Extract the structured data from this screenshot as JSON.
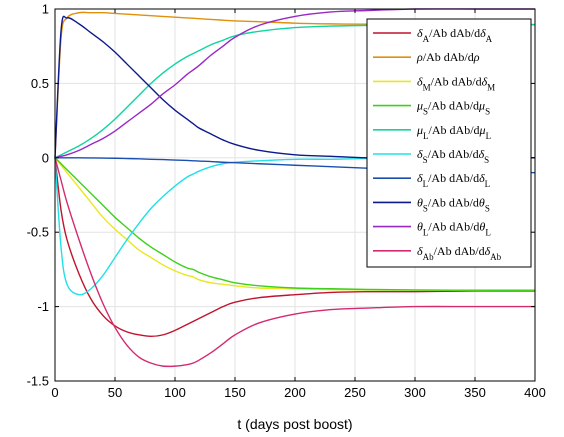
{
  "chart_data": {
    "type": "line",
    "xlabel": "t (days post boost)",
    "ylabel": "",
    "title": "",
    "xlim": [
      0,
      400
    ],
    "ylim": [
      -1.5,
      1
    ],
    "x_ticks": [
      0,
      50,
      100,
      150,
      200,
      250,
      300,
      350,
      400
    ],
    "y_ticks": [
      -1.5,
      -1,
      -0.5,
      0,
      0.5,
      1
    ],
    "x_tick_labels": [
      "0",
      "50",
      "100",
      "150",
      "200",
      "250",
      "300",
      "350",
      "400"
    ],
    "y_tick_labels": [
      "-1.5",
      "-1",
      "-0.5",
      "0",
      "0.5",
      "1"
    ],
    "grid": true,
    "legend_position": "top-right",
    "x": [
      0,
      5,
      10,
      20,
      30,
      40,
      50,
      60,
      70,
      80,
      90,
      100,
      110,
      115,
      120,
      130,
      140,
      150,
      170,
      200,
      230,
      260,
      300,
      350,
      400
    ],
    "series": [
      {
        "name_parts": [
          [
            "δ",
            "A"
          ],
          [
            "/Ab dAb/d",
            ""
          ],
          [
            "δ",
            "A"
          ]
        ],
        "color": "#c0142d",
        "values": [
          0,
          -0.35,
          -0.55,
          -0.78,
          -0.95,
          -1.06,
          -1.13,
          -1.17,
          -1.19,
          -1.2,
          -1.19,
          -1.16,
          -1.12,
          -1.1,
          -1.08,
          -1.04,
          -1.0,
          -0.97,
          -0.94,
          -0.92,
          -0.905,
          -0.9,
          -0.9,
          -0.895,
          -0.895
        ]
      },
      {
        "name_parts": [
          [
            "ρ",
            ""
          ],
          [
            "/Ab dAb/d",
            ""
          ],
          [
            "ρ",
            ""
          ]
        ],
        "color": "#e0900a",
        "values": [
          0,
          0.8,
          0.94,
          0.975,
          0.975,
          0.975,
          0.97,
          0.965,
          0.96,
          0.955,
          0.95,
          0.945,
          0.94,
          0.938,
          0.935,
          0.93,
          0.925,
          0.92,
          0.915,
          0.905,
          0.9,
          0.898,
          0.898,
          0.895,
          0.895
        ]
      },
      {
        "name_parts": [
          [
            "δ",
            "M"
          ],
          [
            "/Ab dAb/d",
            ""
          ],
          [
            "δ",
            "M"
          ]
        ],
        "color": "#e8e820",
        "values": [
          0,
          -0.05,
          -0.1,
          -0.2,
          -0.3,
          -0.4,
          -0.48,
          -0.55,
          -0.62,
          -0.67,
          -0.72,
          -0.76,
          -0.79,
          -0.8,
          -0.82,
          -0.84,
          -0.85,
          -0.86,
          -0.875,
          -0.88,
          -0.885,
          -0.888,
          -0.89,
          -0.89,
          -0.89
        ]
      },
      {
        "name_parts": [
          [
            "μ",
            "S"
          ],
          [
            "/Ab dAb/d",
            ""
          ],
          [
            "μ",
            "S"
          ]
        ],
        "color": "#3ecf1c",
        "values": [
          0,
          -0.04,
          -0.08,
          -0.16,
          -0.24,
          -0.32,
          -0.4,
          -0.47,
          -0.54,
          -0.6,
          -0.65,
          -0.7,
          -0.74,
          -0.75,
          -0.77,
          -0.8,
          -0.82,
          -0.84,
          -0.86,
          -0.875,
          -0.88,
          -0.885,
          -0.888,
          -0.89,
          -0.89
        ]
      },
      {
        "name_parts": [
          [
            "μ",
            "L"
          ],
          [
            "/Ab dAb/d",
            ""
          ],
          [
            "μ",
            "L"
          ]
        ],
        "color": "#11d4a0",
        "values": [
          0,
          0.02,
          0.04,
          0.08,
          0.13,
          0.19,
          0.26,
          0.34,
          0.42,
          0.5,
          0.57,
          0.63,
          0.68,
          0.7,
          0.72,
          0.76,
          0.79,
          0.82,
          0.85,
          0.875,
          0.885,
          0.89,
          0.893,
          0.895,
          0.895
        ]
      },
      {
        "name_parts": [
          [
            "δ",
            "S"
          ],
          [
            "/Ab dAb/d",
            ""
          ],
          [
            "δ",
            "S"
          ]
        ],
        "color": "#20e0e8",
        "values": [
          0,
          -0.6,
          -0.85,
          -0.92,
          -0.88,
          -0.79,
          -0.67,
          -0.55,
          -0.44,
          -0.34,
          -0.26,
          -0.19,
          -0.13,
          -0.11,
          -0.09,
          -0.06,
          -0.04,
          -0.03,
          -0.02,
          -0.01,
          -0.01,
          -0.005,
          -0.005,
          0,
          0
        ]
      },
      {
        "name_parts": [
          [
            "δ",
            "L"
          ],
          [
            "/Ab dAb/d",
            ""
          ],
          [
            "δ",
            "L"
          ]
        ],
        "color": "#1a4fb0",
        "values": [
          0,
          0,
          0,
          0,
          -0.001,
          -0.002,
          -0.003,
          -0.005,
          -0.007,
          -0.01,
          -0.012,
          -0.015,
          -0.018,
          -0.02,
          -0.022,
          -0.025,
          -0.03,
          -0.033,
          -0.04,
          -0.05,
          -0.06,
          -0.07,
          -0.08,
          -0.09,
          -0.1
        ]
      },
      {
        "name_parts": [
          [
            "θ",
            "S"
          ],
          [
            "/Ab dAb/d",
            ""
          ],
          [
            "θ",
            "S"
          ]
        ],
        "color": "#0c1a8c",
        "values": [
          0,
          0.85,
          0.94,
          0.9,
          0.84,
          0.78,
          0.71,
          0.63,
          0.55,
          0.47,
          0.39,
          0.32,
          0.26,
          0.23,
          0.2,
          0.16,
          0.12,
          0.09,
          0.05,
          0.02,
          0.01,
          0,
          0,
          0,
          0
        ]
      },
      {
        "name_parts": [
          [
            "θ",
            "L"
          ],
          [
            "/Ab dAb/d",
            ""
          ],
          [
            "θ",
            "L"
          ]
        ],
        "color": "#9a28c4",
        "values": [
          0,
          0.01,
          0.02,
          0.05,
          0.09,
          0.13,
          0.18,
          0.24,
          0.3,
          0.36,
          0.43,
          0.49,
          0.56,
          0.59,
          0.62,
          0.69,
          0.75,
          0.81,
          0.89,
          0.95,
          0.98,
          0.99,
          1.0,
          1.0,
          1.0
        ]
      },
      {
        "name_parts": [
          [
            "δ",
            "Ab"
          ],
          [
            "/Ab dAb/d",
            ""
          ],
          [
            "δ",
            "Ab"
          ]
        ],
        "color": "#d42a70",
        "values": [
          0,
          -0.15,
          -0.3,
          -0.55,
          -0.78,
          -0.98,
          -1.14,
          -1.26,
          -1.34,
          -1.38,
          -1.4,
          -1.4,
          -1.39,
          -1.38,
          -1.36,
          -1.31,
          -1.25,
          -1.19,
          -1.11,
          -1.05,
          -1.02,
          -1.01,
          -1.0,
          -1.0,
          -1.0
        ]
      }
    ]
  }
}
